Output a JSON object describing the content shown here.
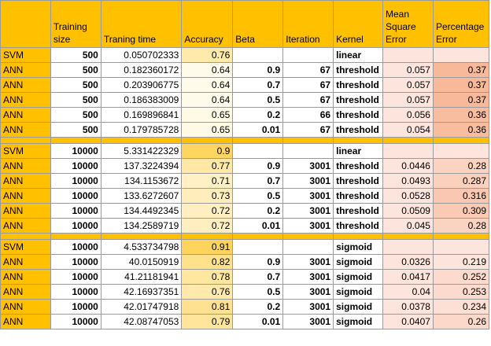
{
  "headers": [
    "",
    "Training size",
    "Traning time",
    "Accuracy",
    "Beta",
    "Iteration",
    "Kernel",
    "Mean Square Error",
    "Percentage Error"
  ],
  "colors": {
    "header_bg": "#ffc000",
    "accuracy_scale": [
      "#fffbea",
      "#ffd45c"
    ],
    "percentage_scale": [
      "#fde4dc",
      "#f8b99a"
    ],
    "mse_bg": "#fde4dc"
  },
  "groups": [
    {
      "rows": [
        {
          "model": "SVM",
          "size": "500",
          "time": "0.050702333",
          "accuracy": "0.76",
          "beta": "",
          "iteration": "",
          "kernel": "linear",
          "mse": "",
          "pct": ""
        },
        {
          "model": "ANN",
          "size": "500",
          "time": "0.182360172",
          "accuracy": "0.64",
          "beta": "0.9",
          "iteration": "67",
          "kernel": "threshold",
          "mse": "0.057",
          "pct": "0.37"
        },
        {
          "model": "ANN",
          "size": "500",
          "time": "0.203906775",
          "accuracy": "0.64",
          "beta": "0.7",
          "iteration": "67",
          "kernel": "threshold",
          "mse": "0.057",
          "pct": "0.37"
        },
        {
          "model": "ANN",
          "size": "500",
          "time": "0.186383009",
          "accuracy": "0.64",
          "beta": "0.5",
          "iteration": "67",
          "kernel": "threshold",
          "mse": "0.057",
          "pct": "0.37"
        },
        {
          "model": "ANN",
          "size": "500",
          "time": "0.169896841",
          "accuracy": "0.65",
          "beta": "0.2",
          "iteration": "66",
          "kernel": "threshold",
          "mse": "0.056",
          "pct": "0.36"
        },
        {
          "model": "ANN",
          "size": "500",
          "time": "0.179785728",
          "accuracy": "0.65",
          "beta": "0.01",
          "iteration": "67",
          "kernel": "threshold",
          "mse": "0.054",
          "pct": "0.36"
        }
      ]
    },
    {
      "rows": [
        {
          "model": "SVM",
          "size": "10000",
          "time": "5.331422329",
          "accuracy": "0.9",
          "beta": "",
          "iteration": "",
          "kernel": "linear",
          "mse": "",
          "pct": ""
        },
        {
          "model": "ANN",
          "size": "10000",
          "time": "137.3224394",
          "accuracy": "0.77",
          "beta": "0.9",
          "iteration": "3001",
          "kernel": "threshold",
          "mse": "0.0446",
          "pct": "0.28"
        },
        {
          "model": "ANN",
          "size": "10000",
          "time": "134.1153672",
          "accuracy": "0.71",
          "beta": "0.7",
          "iteration": "3001",
          "kernel": "threshold",
          "mse": "0.0493",
          "pct": "0.287"
        },
        {
          "model": "ANN",
          "size": "10000",
          "time": "133.6272607",
          "accuracy": "0.73",
          "beta": "0.5",
          "iteration": "3001",
          "kernel": "threshold",
          "mse": "0.0528",
          "pct": "0.316"
        },
        {
          "model": "ANN",
          "size": "10000",
          "time": "134.4492345",
          "accuracy": "0.72",
          "beta": "0.2",
          "iteration": "3001",
          "kernel": "threshold",
          "mse": "0.0509",
          "pct": "0.309"
        },
        {
          "model": "ANN",
          "size": "10000",
          "time": "134.2589719",
          "accuracy": "0.72",
          "beta": "0.01",
          "iteration": "3001",
          "kernel": "threshold",
          "mse": "0.045",
          "pct": "0.28"
        }
      ]
    },
    {
      "rows": [
        {
          "model": "SVM",
          "size": "10000",
          "time": "4.533734798",
          "accuracy": "0.91",
          "beta": "",
          "iteration": "",
          "kernel": "sigmoid",
          "mse": "",
          "pct": ""
        },
        {
          "model": "ANN",
          "size": "10000",
          "time": "40.0150919",
          "accuracy": "0.82",
          "beta": "0.9",
          "iteration": "3001",
          "kernel": "sigmoid",
          "mse": "0.0326",
          "pct": "0.219"
        },
        {
          "model": "ANN",
          "size": "10000",
          "time": "41.21181941",
          "accuracy": "0.78",
          "beta": "0.7",
          "iteration": "3001",
          "kernel": "sigmoid",
          "mse": "0.0417",
          "pct": "0.252"
        },
        {
          "model": "ANN",
          "size": "10000",
          "time": "42.16937351",
          "accuracy": "0.76",
          "beta": "0.5",
          "iteration": "3001",
          "kernel": "sigmoid",
          "mse": "0.04",
          "pct": "0.253"
        },
        {
          "model": "ANN",
          "size": "10000",
          "time": "42.01747918",
          "accuracy": "0.81",
          "beta": "0.2",
          "iteration": "3001",
          "kernel": "sigmoid",
          "mse": "0.0378",
          "pct": "0.234"
        },
        {
          "model": "ANN",
          "size": "10000",
          "time": "42.08747053",
          "accuracy": "0.79",
          "beta": "0.01",
          "iteration": "3001",
          "kernel": "sigmoid",
          "mse": "0.0407",
          "pct": "0.26"
        }
      ]
    }
  ]
}
